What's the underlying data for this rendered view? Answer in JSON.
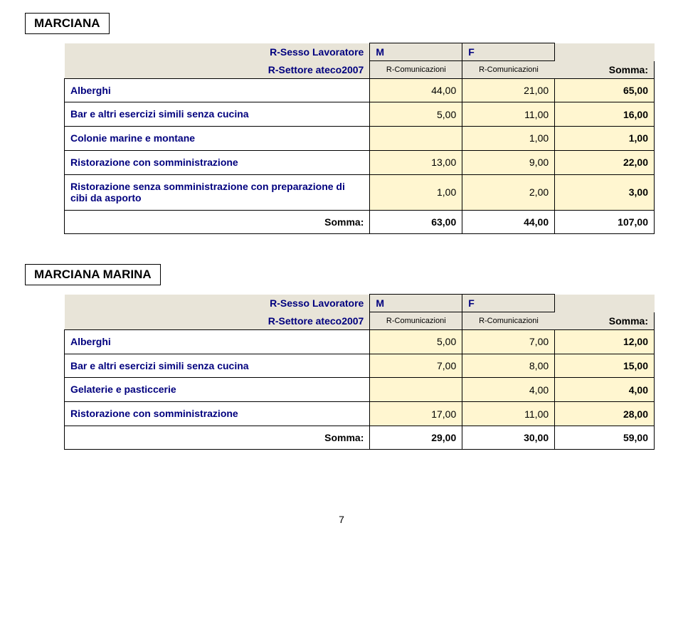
{
  "colors": {
    "header_bg": "#e8e4d8",
    "value_bg": "#fff6d0",
    "label_text": "#00007e",
    "border": "#000000"
  },
  "pageNumber": "7",
  "sections": [
    {
      "title": "MARCIANA",
      "header": {
        "sexLabel": "R-Sesso Lavoratore",
        "sectorLabel": "R-Settore ateco2007",
        "m": "M",
        "f": "F",
        "sub": "R-Comunicazioni",
        "sommaLabel": "Somma:"
      },
      "rows": [
        {
          "label": "Alberghi",
          "m": "44,00",
          "f": "21,00",
          "t": "65,00"
        },
        {
          "label": "Bar e altri esercizi simili senza cucina",
          "m": "5,00",
          "f": "11,00",
          "t": "16,00"
        },
        {
          "label": "Colonie marine e montane",
          "m": "",
          "f": "1,00",
          "t": "1,00"
        },
        {
          "label": "Ristorazione con somministrazione",
          "m": "13,00",
          "f": "9,00",
          "t": "22,00"
        },
        {
          "label": "Ristorazione senza somministrazione con preparazione di cibi da asporto",
          "m": "1,00",
          "f": "2,00",
          "t": "3,00"
        }
      ],
      "totals": {
        "label": "Somma:",
        "m": "63,00",
        "f": "44,00",
        "t": "107,00"
      }
    },
    {
      "title": "MARCIANA MARINA",
      "header": {
        "sexLabel": "R-Sesso Lavoratore",
        "sectorLabel": "R-Settore ateco2007",
        "m": "M",
        "f": "F",
        "sub": "R-Comunicazioni",
        "sommaLabel": "Somma:"
      },
      "rows": [
        {
          "label": "Alberghi",
          "m": "5,00",
          "f": "7,00",
          "t": "12,00"
        },
        {
          "label": "Bar e altri esercizi simili senza cucina",
          "m": "7,00",
          "f": "8,00",
          "t": "15,00"
        },
        {
          "label": "Gelaterie e pasticcerie",
          "m": "",
          "f": "4,00",
          "t": "4,00"
        },
        {
          "label": "Ristorazione con somministrazione",
          "m": "17,00",
          "f": "11,00",
          "t": "28,00"
        }
      ],
      "totals": {
        "label": "Somma:",
        "m": "29,00",
        "f": "30,00",
        "t": "59,00"
      }
    }
  ]
}
